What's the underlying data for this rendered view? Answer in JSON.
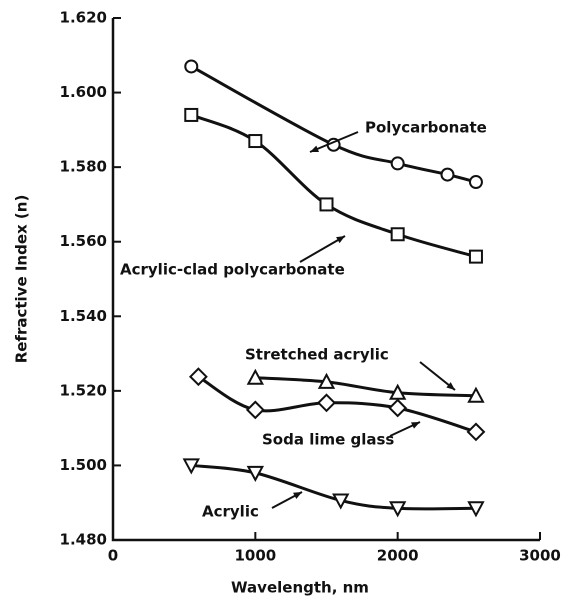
{
  "chart_data": {
    "type": "scatter",
    "xlabel": "Wavelength, nm",
    "ylabel": "Refractive Index (n)",
    "xlim": [
      0,
      3000
    ],
    "xticks": [
      0,
      1000,
      2000,
      3000
    ],
    "ylim": [
      1.48,
      1.62
    ],
    "yticks": [
      {
        "value": 1.48,
        "label": "1.480"
      },
      {
        "value": 1.5,
        "label": "1.500"
      },
      {
        "value": 1.52,
        "label": "1.520"
      },
      {
        "value": 1.54,
        "label": "1.540"
      },
      {
        "value": 1.56,
        "label": "1.560"
      },
      {
        "value": 1.58,
        "label": "1.580"
      },
      {
        "value": 1.6,
        "label": "1.600"
      },
      {
        "value": 1.62,
        "label": "1.620"
      }
    ],
    "series": [
      {
        "name": "Polycarbonate",
        "color": "#111111",
        "marker": "circle",
        "x": [
          550,
          1550,
          2000,
          2350,
          2550
        ],
        "values": [
          1.607,
          1.586,
          1.581,
          1.578,
          1.576
        ]
      },
      {
        "name": "Acrylic-clad polycarbonate",
        "color": "#111111",
        "marker": "square",
        "x": [
          550,
          1000,
          1500,
          2000,
          2550
        ],
        "values": [
          1.594,
          1.587,
          1.57,
          1.562,
          1.556
        ]
      },
      {
        "name": "Stretched acrylic",
        "color": "#111111",
        "marker": "triangle",
        "x": [
          1000,
          1500,
          2000,
          2550
        ],
        "values": [
          1.5235,
          1.5224,
          1.5195,
          1.5187
        ]
      },
      {
        "name": "Soda lime glass",
        "color": "#111111",
        "marker": "diamond",
        "x": [
          600,
          1000,
          1500,
          2000,
          2550
        ],
        "values": [
          1.5238,
          1.5149,
          1.5168,
          1.5154,
          1.509
        ]
      },
      {
        "name": "Acrylic",
        "color": "#111111",
        "marker": "triangle-down",
        "x": [
          550,
          1000,
          1600,
          2000,
          2550
        ],
        "values": [
          1.5,
          1.498,
          1.4906,
          1.4885,
          1.4885
        ]
      }
    ]
  }
}
